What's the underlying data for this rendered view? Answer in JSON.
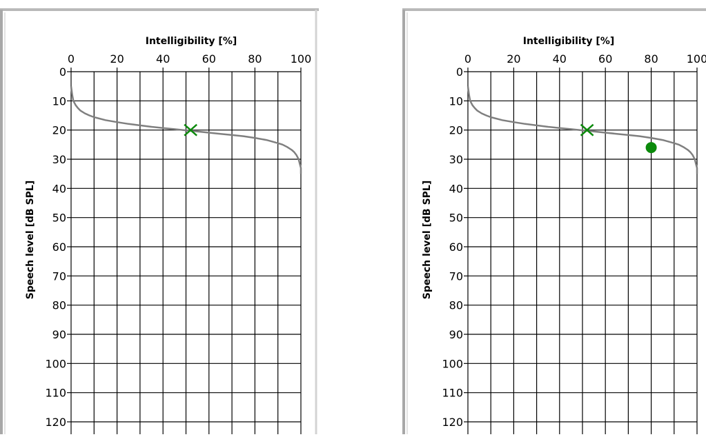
{
  "chart_data": [
    {
      "type": "line",
      "title": "",
      "xlabel": "Intelligibility [%]",
      "ylabel": "Speech level [dB SPL]",
      "xlim": [
        0,
        100
      ],
      "ylim": [
        0,
        120
      ],
      "y_reversed": true,
      "x_axis_position": "top",
      "grid": true,
      "x_ticks": [
        "0",
        "20",
        "40",
        "60",
        "80",
        "100"
      ],
      "y_ticks": [
        "0",
        "10",
        "20",
        "30",
        "40",
        "50",
        "60",
        "70",
        "80",
        "90",
        "100",
        "110",
        "120"
      ],
      "series": [
        {
          "color": "#7f7f7f",
          "x": [
            0,
            0.5,
            1,
            2,
            3,
            4,
            6,
            8,
            10,
            15,
            20,
            25,
            30,
            35,
            40,
            45,
            50,
            55,
            60,
            65,
            70,
            75,
            80,
            85,
            90,
            92,
            94,
            96,
            97,
            98,
            99,
            99.5,
            100,
            100
          ],
          "y": [
            5,
            8,
            10,
            11.5,
            12.5,
            13.3,
            14.3,
            15,
            15.6,
            16.6,
            17.3,
            17.9,
            18.4,
            18.9,
            19.3,
            19.7,
            20.1,
            20.5,
            20.9,
            21.3,
            21.7,
            22.1,
            22.7,
            23.4,
            24.5,
            25,
            25.8,
            26.8,
            27.5,
            28.5,
            30,
            31.5,
            33,
            35
          ]
        }
      ],
      "markers": [
        {
          "symbol": "x",
          "x": 52,
          "y": 20,
          "color": "#0b8a0b"
        }
      ]
    },
    {
      "type": "line",
      "title": "",
      "xlabel": "Intelligibility [%]",
      "ylabel": "Speech level [dB SPL]",
      "xlim": [
        0,
        100
      ],
      "ylim": [
        0,
        120
      ],
      "y_reversed": true,
      "x_axis_position": "top",
      "grid": true,
      "x_ticks": [
        "0",
        "20",
        "40",
        "60",
        "80",
        "100"
      ],
      "y_ticks": [
        "0",
        "10",
        "20",
        "30",
        "40",
        "50",
        "60",
        "70",
        "80",
        "90",
        "100",
        "110",
        "120"
      ],
      "series": [
        {
          "color": "#7f7f7f",
          "x": [
            0,
            0.5,
            1,
            2,
            3,
            4,
            6,
            8,
            10,
            15,
            20,
            25,
            30,
            35,
            40,
            45,
            50,
            55,
            60,
            65,
            70,
            75,
            80,
            85,
            90,
            92,
            94,
            96,
            97,
            98,
            99,
            99.5,
            100,
            100
          ],
          "y": [
            5,
            8,
            10,
            11.5,
            12.5,
            13.3,
            14.3,
            15,
            15.6,
            16.6,
            17.3,
            17.9,
            18.4,
            18.9,
            19.3,
            19.7,
            20.1,
            20.5,
            20.9,
            21.3,
            21.7,
            22.1,
            22.7,
            23.4,
            24.5,
            25,
            25.8,
            26.8,
            27.5,
            28.5,
            30,
            31.5,
            33,
            35
          ]
        }
      ],
      "markers": [
        {
          "symbol": "x",
          "x": 52,
          "y": 20,
          "color": "#0b8a0b"
        },
        {
          "symbol": "circle",
          "x": 80,
          "y": 26,
          "color": "#0b8a0b"
        }
      ]
    }
  ]
}
